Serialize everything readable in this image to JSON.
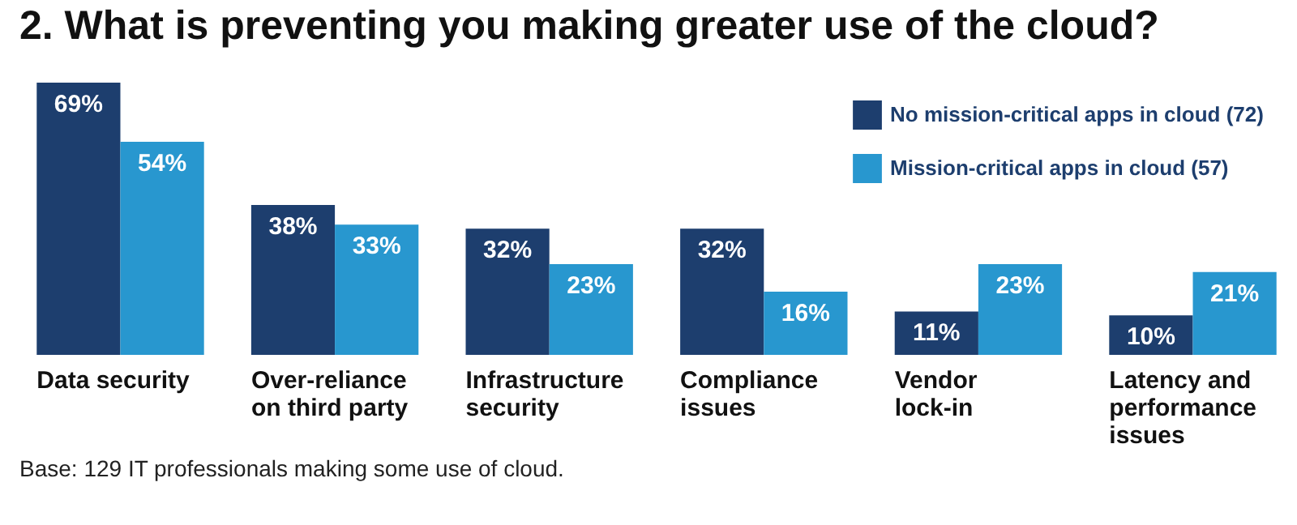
{
  "chart_data": {
    "type": "bar",
    "title": "2. What is preventing you making greater use of the cloud?",
    "categories": [
      "Data security",
      "Over-reliance\non third party",
      "Infrastructure\nsecurity",
      "Compliance\nissues",
      "Vendor\nlock-in",
      "Latency and\nperformance\nissues"
    ],
    "series": [
      {
        "name": "No mission-critical apps in cloud (72)",
        "color": "#1d3e6e",
        "values": [
          69,
          38,
          32,
          32,
          11,
          10
        ],
        "value_labels": [
          "69%",
          "38%",
          "32%",
          "32%",
          "11%",
          "10%"
        ]
      },
      {
        "name": "Mission-critical apps in cloud (57)",
        "color": "#2897cf",
        "values": [
          54,
          33,
          23,
          16,
          23,
          21
        ],
        "value_labels": [
          "54%",
          "33%",
          "23%",
          "16%",
          "23%",
          "21%"
        ]
      }
    ],
    "legend": "top right",
    "annotations": [
      "Base: 129 IT professionals making some use of cloud."
    ]
  }
}
